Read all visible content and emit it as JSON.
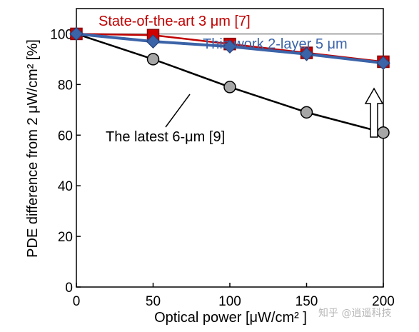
{
  "chart_data": {
    "type": "line",
    "x": [
      0,
      50,
      100,
      150,
      200
    ],
    "xlabel": "Optical power [μW/cm² ]",
    "ylabel": "PDE difference from 2 μW/cm² [%]",
    "xlim": [
      0,
      200
    ],
    "ylim": [
      0,
      110
    ],
    "xticks": [
      "0",
      "50",
      "100",
      "150",
      "200"
    ],
    "yticks": [
      "0",
      "20",
      "40",
      "60",
      "80",
      "100"
    ],
    "grid": false,
    "reference_line": {
      "y": 100,
      "color": "#a8a8a8"
    },
    "series": [
      {
        "name": "The latest 6-μm [9]",
        "values": [
          100,
          90,
          79,
          69,
          61
        ],
        "color": "#000000",
        "marker_fill": "#a6a6a6",
        "marker": "circle"
      },
      {
        "name": "State-of-the-art 3 μm [7]",
        "values": [
          100,
          99.5,
          96,
          92.5,
          89
        ],
        "color": "#c00000",
        "marker_fill": "#d00000",
        "marker": "square"
      },
      {
        "name": "This work 2-layer 5 μm",
        "values": [
          100,
          97,
          95,
          92,
          88.5
        ],
        "color": "#3b63a8",
        "marker_fill": "#3b63a8",
        "marker": "diamond"
      }
    ],
    "annotations": {
      "red_label": "State-of-the-art 3 μm [7]",
      "blue_label": "This work 2-layer 5 μm",
      "black_label": "The latest 6-μm [9]",
      "arrow_note": "upward arrow at x=200 from 61% toward ~88%"
    }
  },
  "watermark": "知乎 @逍遥科技"
}
